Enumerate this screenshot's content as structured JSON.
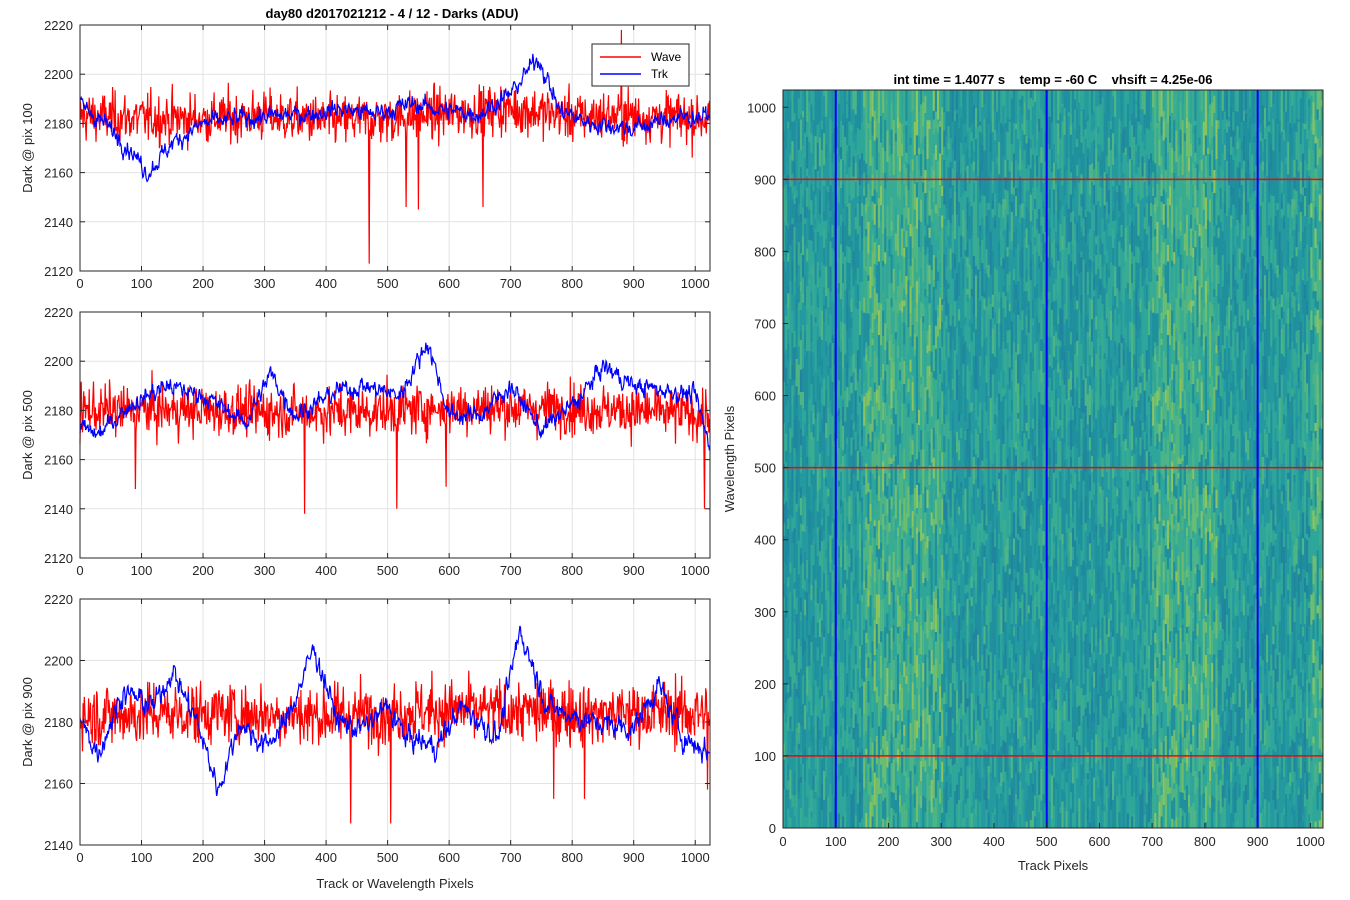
{
  "figure": {
    "title": "day80 d2017021212 - 4 / 12 - Darks (ADU)"
  },
  "colors": {
    "wave": "#ff0000",
    "trk": "#0000ff",
    "grid": "#e3e3e3",
    "axis": "#262626",
    "image_base": "#2aa29a",
    "image_bright": "#8cc460"
  },
  "chart_data": [
    {
      "type": "line",
      "ylabel": "Dark @ pix 100",
      "xlabel": "",
      "xlim": [
        0,
        1024
      ],
      "ylim": [
        2120,
        2220
      ],
      "xticks": [
        0,
        100,
        200,
        300,
        400,
        500,
        600,
        700,
        800,
        900,
        1000
      ],
      "yticks": [
        2120,
        2140,
        2160,
        2180,
        2200,
        2220
      ],
      "grid": true,
      "legend": "top-right",
      "series": [
        {
          "name": "Wave",
          "color": "#ff0000",
          "mean": 2182,
          "std": 8,
          "keypoints": [
            [
              0,
              2183
            ],
            [
              100,
              2182
            ],
            [
              200,
              2182
            ],
            [
              300,
              2183
            ],
            [
              400,
              2181
            ],
            [
              500,
              2182
            ],
            [
              600,
              2184
            ],
            [
              700,
              2186
            ],
            [
              800,
              2183
            ],
            [
              900,
              2183
            ],
            [
              1024,
              2182
            ]
          ],
          "spikes": [
            [
              470,
              2123
            ],
            [
              530,
              2146
            ],
            [
              550,
              2145
            ],
            [
              655,
              2146
            ],
            [
              880,
              2218
            ]
          ]
        },
        {
          "name": "Trk",
          "color": "#0000ff",
          "mean": 2182,
          "std": 4,
          "keypoints": [
            [
              0,
              2188
            ],
            [
              40,
              2180
            ],
            [
              80,
              2170
            ],
            [
              110,
              2160
            ],
            [
              150,
              2172
            ],
            [
              200,
              2180
            ],
            [
              260,
              2182
            ],
            [
              320,
              2183
            ],
            [
              380,
              2184
            ],
            [
              420,
              2186
            ],
            [
              480,
              2184
            ],
            [
              540,
              2188
            ],
            [
              600,
              2185
            ],
            [
              650,
              2184
            ],
            [
              700,
              2192
            ],
            [
              745,
              2207
            ],
            [
              780,
              2185
            ],
            [
              830,
              2180
            ],
            [
              900,
              2178
            ],
            [
              960,
              2182
            ],
            [
              1024,
              2183
            ]
          ]
        }
      ]
    },
    {
      "type": "line",
      "ylabel": "Dark @ pix 500",
      "xlabel": "",
      "xlim": [
        0,
        1024
      ],
      "ylim": [
        2120,
        2220
      ],
      "xticks": [
        0,
        100,
        200,
        300,
        400,
        500,
        600,
        700,
        800,
        900,
        1000
      ],
      "yticks": [
        2120,
        2140,
        2160,
        2180,
        2200,
        2220
      ],
      "grid": true,
      "series": [
        {
          "name": "Wave",
          "color": "#ff0000",
          "mean": 2180,
          "std": 8,
          "keypoints": [
            [
              0,
              2180
            ],
            [
              200,
              2180
            ],
            [
              400,
              2179
            ],
            [
              600,
              2181
            ],
            [
              800,
              2181
            ],
            [
              1024,
              2178
            ]
          ],
          "spikes": [
            [
              90,
              2148
            ],
            [
              365,
              2138
            ],
            [
              515,
              2140
            ],
            [
              595,
              2149
            ],
            [
              1015,
              2140
            ]
          ]
        },
        {
          "name": "Trk",
          "color": "#0000ff",
          "mean": 2183,
          "std": 4,
          "keypoints": [
            [
              0,
              2173
            ],
            [
              30,
              2170
            ],
            [
              80,
              2182
            ],
            [
              140,
              2190
            ],
            [
              200,
              2186
            ],
            [
              270,
              2175
            ],
            [
              310,
              2195
            ],
            [
              350,
              2178
            ],
            [
              420,
              2188
            ],
            [
              460,
              2190
            ],
            [
              520,
              2186
            ],
            [
              565,
              2208
            ],
            [
              600,
              2178
            ],
            [
              650,
              2178
            ],
            [
              700,
              2190
            ],
            [
              750,
              2172
            ],
            [
              810,
              2184
            ],
            [
              850,
              2198
            ],
            [
              900,
              2190
            ],
            [
              960,
              2188
            ],
            [
              1000,
              2186
            ],
            [
              1024,
              2165
            ]
          ]
        }
      ]
    },
    {
      "type": "line",
      "ylabel": "Dark @ pix 900",
      "xlabel": "Track or Wavelength Pixels",
      "xlim": [
        0,
        1024
      ],
      "ylim": [
        2140,
        2220
      ],
      "xticks": [
        0,
        100,
        200,
        300,
        400,
        500,
        600,
        700,
        800,
        900,
        1000
      ],
      "yticks": [
        2140,
        2160,
        2180,
        2200,
        2220
      ],
      "grid": true,
      "series": [
        {
          "name": "Wave",
          "color": "#ff0000",
          "mean": 2183,
          "std": 8,
          "keypoints": [
            [
              0,
              2182
            ],
            [
              200,
              2183
            ],
            [
              400,
              2182
            ],
            [
              600,
              2184
            ],
            [
              800,
              2183
            ],
            [
              1024,
              2183
            ]
          ],
          "spikes": [
            [
              440,
              2147
            ],
            [
              505,
              2147
            ],
            [
              770,
              2155
            ],
            [
              820,
              2155
            ],
            [
              1020,
              2158
            ]
          ]
        },
        {
          "name": "Trk",
          "color": "#0000ff",
          "mean": 2182,
          "std": 4,
          "keypoints": [
            [
              0,
              2180
            ],
            [
              30,
              2170
            ],
            [
              70,
              2190
            ],
            [
              120,
              2185
            ],
            [
              150,
              2197
            ],
            [
              190,
              2180
            ],
            [
              225,
              2158
            ],
            [
              260,
              2180
            ],
            [
              300,
              2172
            ],
            [
              335,
              2180
            ],
            [
              380,
              2204
            ],
            [
              420,
              2180
            ],
            [
              460,
              2178
            ],
            [
              500,
              2185
            ],
            [
              530,
              2175
            ],
            [
              580,
              2172
            ],
            [
              620,
              2185
            ],
            [
              680,
              2175
            ],
            [
              715,
              2210
            ],
            [
              760,
              2185
            ],
            [
              830,
              2180
            ],
            [
              900,
              2178
            ],
            [
              940,
              2192
            ],
            [
              980,
              2175
            ],
            [
              1024,
              2170
            ]
          ]
        }
      ]
    },
    {
      "type": "heatmap",
      "title": "int time = 1.4077 s    temp = -60 C    vhsift = 4.25e-06",
      "xlabel": "Track Pixels",
      "ylabel": "Wavelength Pixels",
      "xlim": [
        0,
        1024
      ],
      "ylim": [
        0,
        1024
      ],
      "xticks": [
        0,
        100,
        200,
        300,
        400,
        500,
        600,
        700,
        800,
        900,
        1000
      ],
      "yticks": [
        0,
        100,
        200,
        300,
        400,
        500,
        600,
        700,
        800,
        900,
        1000
      ],
      "vertical_lines": {
        "color": "#0000ff",
        "x": [
          100,
          500,
          900
        ]
      },
      "horizontal_lines": {
        "color": "#ff0000",
        "y": [
          100,
          500,
          900
        ]
      },
      "bright_bands_x": [
        [
          150,
          300
        ],
        [
          700,
          820
        ],
        [
          1000,
          1024
        ]
      ]
    }
  ]
}
